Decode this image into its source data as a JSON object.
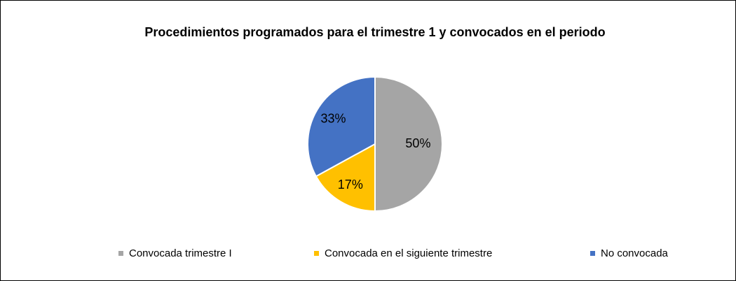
{
  "chart_data": {
    "type": "pie",
    "title": "Procedimientos programados para el trimestre 1 y convocados en el periodo",
    "categories": [
      "Convocada trimestre I",
      "Convocada en el siguiente trimestre",
      "No convocada"
    ],
    "values": [
      50,
      17,
      33
    ],
    "value_labels": [
      "50%",
      "17%",
      "33%"
    ],
    "colors": [
      "#a5a5a5",
      "#ffc000",
      "#4472c4"
    ],
    "legend": "bottom"
  }
}
